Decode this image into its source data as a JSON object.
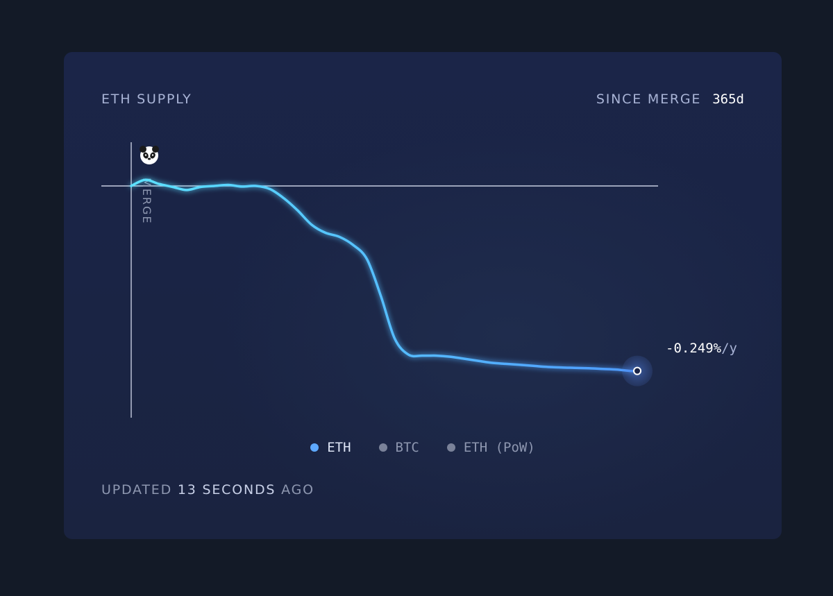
{
  "card": {
    "title": "ETH SUPPLY",
    "since_label": "SINCE MERGE",
    "since_value": "365d"
  },
  "merge_label": "MERGE",
  "merge_icon": "panda-icon",
  "rate": {
    "value": "-0.249%",
    "unit": "/y"
  },
  "legend": [
    {
      "label": "ETH",
      "color": "#5ea9ff",
      "active": true
    },
    {
      "label": "BTC",
      "color": "#7a8299",
      "active": false
    },
    {
      "label": "ETH (PoW)",
      "color": "#7a8299",
      "active": false
    }
  ],
  "updated": {
    "prefix": "UPDATED",
    "count": "13",
    "unit": "SECONDS",
    "suffix": "AGO"
  },
  "colors": {
    "line_start": "#5ce6ff",
    "line_end": "#4f9bff",
    "baseline": "#c7cde0"
  },
  "chart_data": {
    "type": "line",
    "series": [
      {
        "name": "ETH",
        "x": [
          0,
          10,
          20,
          30,
          40,
          50,
          60,
          70,
          80,
          90,
          100,
          110,
          120,
          130,
          140,
          150,
          160,
          170,
          180,
          190,
          200,
          210,
          220,
          230,
          240,
          250,
          260,
          270,
          280,
          290,
          300,
          310,
          320,
          330,
          340,
          350,
          360,
          365
        ],
        "values": [
          0.0,
          0.03,
          0.01,
          -0.005,
          -0.02,
          -0.005,
          0.0,
          0.005,
          -0.003,
          0.0,
          -0.015,
          -0.06,
          -0.12,
          -0.19,
          -0.23,
          -0.25,
          -0.29,
          -0.36,
          -0.54,
          -0.75,
          -0.83,
          -0.835,
          -0.835,
          -0.84,
          -0.85,
          -0.86,
          -0.87,
          -0.875,
          -0.88,
          -0.885,
          -0.89,
          -0.893,
          -0.895,
          -0.897,
          -0.9,
          -0.903,
          -0.91,
          -0.91
        ]
      }
    ],
    "xlim": [
      0,
      380
    ],
    "ylim": [
      -1.14,
      0.21
    ],
    "baseline": 0,
    "xlabel": "",
    "ylabel": "",
    "grid": false,
    "legend": "bottom-center"
  }
}
